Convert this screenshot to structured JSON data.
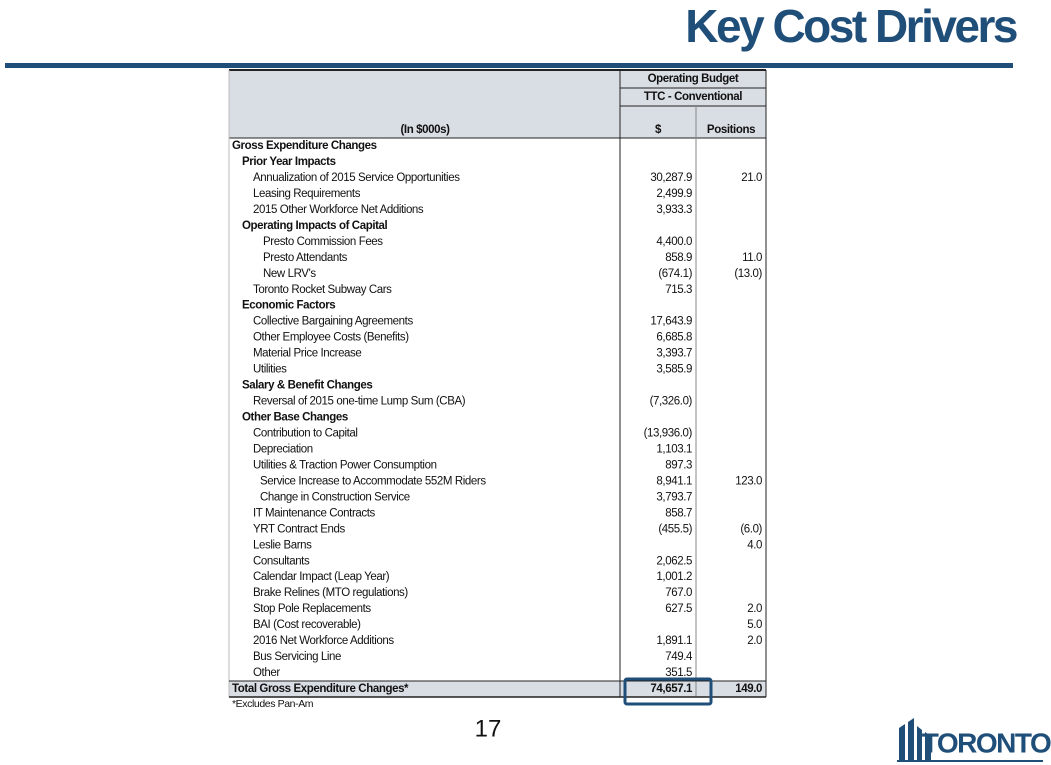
{
  "title": "Key Cost Drivers",
  "table": {
    "header": {
      "group": "Operating Budget",
      "subgroup": "TTC - Conventional",
      "label_column": "(In $000s)",
      "columns": [
        "$",
        "Positions"
      ]
    },
    "rows": [
      [
        "Gross Expenditure Changes",
        null,
        null
      ],
      [
        "Prior Year Impacts",
        null,
        null
      ],
      [
        "Annualization of 2015 Service Opportunities",
        "30,287.9",
        "21.0"
      ],
      [
        "Leasing Requirements",
        "2,499.9",
        null
      ],
      [
        "2015 Other Workforce Net Additions",
        "3,933.3",
        null
      ],
      [
        "Operating Impacts of Capital",
        null,
        null
      ],
      [
        "Presto Commission Fees",
        "4,400.0",
        null
      ],
      [
        "Presto Attendants",
        "858.9",
        "11.0"
      ],
      [
        "New LRV's",
        "(674.1)",
        "(13.0)"
      ],
      [
        "Toronto Rocket Subway Cars",
        "715.3",
        null
      ],
      [
        "Economic Factors",
        null,
        null
      ],
      [
        "Collective Bargaining Agreements",
        "17,643.9",
        null
      ],
      [
        "Other Employee Costs (Benefits)",
        "6,685.8",
        null
      ],
      [
        "Material Price Increase",
        "3,393.7",
        null
      ],
      [
        "Utilities",
        "3,585.9",
        null
      ],
      [
        "Salary & Benefit Changes",
        null,
        null
      ],
      [
        "Reversal of 2015 one-time Lump Sum (CBA)",
        "(7,326.0)",
        null
      ],
      [
        "Other Base Changes",
        null,
        null
      ],
      [
        "Contribution to Capital",
        "(13,936.0)",
        null
      ],
      [
        "Depreciation",
        "1,103.1",
        null
      ],
      [
        "Utilities & Traction Power Consumption",
        "897.3",
        null
      ],
      [
        "Service Increase to Accommodate 552M Riders",
        "8,941.1",
        "123.0"
      ],
      [
        "Change in Construction Service",
        "3,793.7",
        null
      ],
      [
        "IT Maintenance Contracts",
        "858.7",
        null
      ],
      [
        "YRT Contract Ends",
        "(455.5)",
        "(6.0)"
      ],
      [
        "Leslie Barns",
        null,
        "4.0"
      ],
      [
        "Consultants",
        "2,062.5",
        null
      ],
      [
        "Calendar Impact (Leap Year)",
        "1,001.2",
        null
      ],
      [
        "Brake Relines (MTO regulations)",
        "767.0",
        null
      ],
      [
        "Stop Pole Replacements",
        "627.5",
        "2.0"
      ],
      [
        "BAI (Cost recoverable)",
        null,
        "5.0"
      ],
      [
        "2016 Net Workforce Additions",
        "1,891.1",
        "2.0"
      ],
      [
        "Bus Servicing Line",
        "749.4",
        null
      ],
      [
        "Other",
        "351.5",
        null
      ]
    ],
    "total": [
      "Total Gross Expenditure Changes*",
      "74,657.1",
      "149.0"
    ],
    "footnote": "*Excludes Pan-Am"
  },
  "page_number": "17",
  "logo": "TORONTO"
}
